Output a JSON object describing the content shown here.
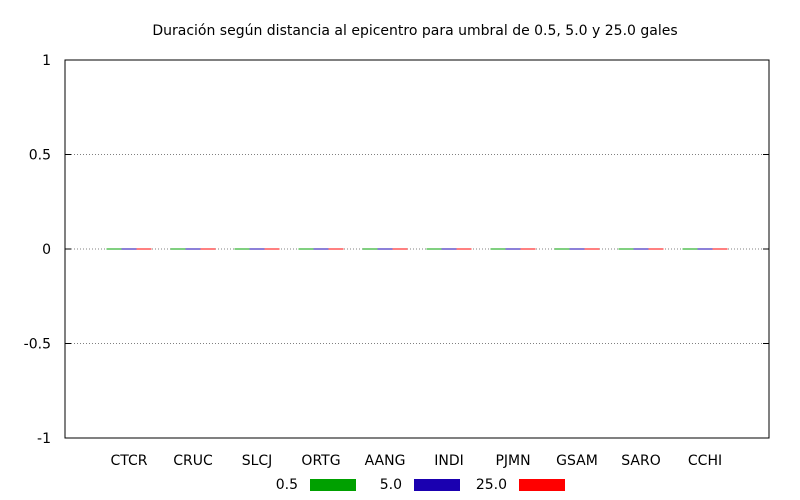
{
  "chart_data": {
    "type": "bar",
    "title": "Duración según distancia al epicentro para umbral de 0.5, 5.0 y 25.0 gales",
    "xlabel": "",
    "ylabel": "",
    "categories": [
      "CTCR",
      "CRUC",
      "SLCJ",
      "ORTG",
      "AANG",
      "INDI",
      "PJMN",
      "GSAM",
      "SARO",
      "CCHI"
    ],
    "series": [
      {
        "name": "0.5",
        "color": "#00a000",
        "values": [
          0,
          0,
          0,
          0,
          0,
          0,
          0,
          0,
          0,
          0
        ]
      },
      {
        "name": "5.0",
        "color": "#1a00b0",
        "values": [
          0,
          0,
          0,
          0,
          0,
          0,
          0,
          0,
          0,
          0
        ]
      },
      {
        "name": "25.0",
        "color": "#ff0000",
        "values": [
          0,
          0,
          0,
          0,
          0,
          0,
          0,
          0,
          0,
          0
        ]
      }
    ],
    "ylim": [
      -1,
      1
    ],
    "yticks": [
      -1,
      -0.5,
      0,
      0.5,
      1
    ],
    "ytick_labels": [
      "-1",
      "-0.5",
      "0",
      "0.5",
      "1"
    ],
    "grid": "horizontal-dotted",
    "legend_position": "bottom"
  }
}
